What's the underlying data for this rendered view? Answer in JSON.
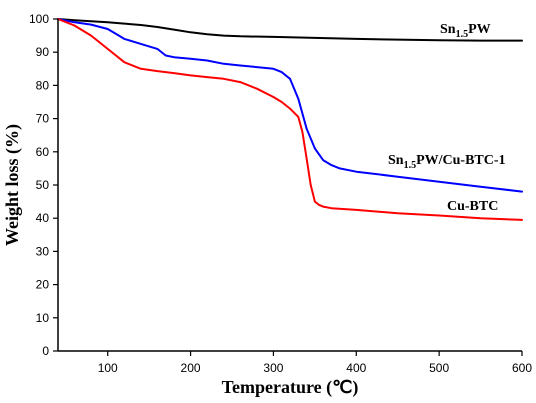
{
  "chart_data": {
    "type": "line",
    "xlabel": "Temperature (℃)",
    "ylabel": "Weight loss (%)",
    "xlim": [
      40,
      600
    ],
    "ylim": [
      0,
      100
    ],
    "xticks": [
      100,
      200,
      300,
      400,
      500,
      600
    ],
    "yticks": [
      0,
      10,
      20,
      30,
      40,
      50,
      60,
      70,
      80,
      90,
      100
    ],
    "grid": false,
    "legend": "none",
    "series": [
      {
        "name": "Sn1.5PW",
        "label_main": "Sn",
        "label_sub": "1.5",
        "label_rest": "PW",
        "color": "#000000",
        "x": [
          40,
          60,
          80,
          100,
          120,
          140,
          160,
          180,
          200,
          220,
          240,
          260,
          300,
          350,
          400,
          450,
          500,
          550,
          600
        ],
        "y": [
          100,
          99.6,
          99.3,
          99,
          98.6,
          98.2,
          97.6,
          96.8,
          96.0,
          95.4,
          95.0,
          94.8,
          94.6,
          94.3,
          94.0,
          93.8,
          93.6,
          93.5,
          93.5
        ]
      },
      {
        "name": "Sn1.5PW/Cu-BTC-1",
        "label_main": "Sn",
        "label_sub": "1.5",
        "label_rest": "PW/Cu-BTC-1",
        "color": "#0000ff",
        "x": [
          40,
          60,
          80,
          100,
          110,
          120,
          140,
          160,
          170,
          180,
          200,
          220,
          240,
          260,
          280,
          300,
          310,
          320,
          330,
          340,
          350,
          360,
          370,
          380,
          400,
          450,
          500,
          550,
          600
        ],
        "y": [
          100,
          99,
          98.3,
          97,
          95.5,
          94,
          92.5,
          91,
          89,
          88.5,
          88,
          87.5,
          86.5,
          86,
          85.5,
          85,
          84,
          82,
          76,
          67,
          61,
          57.5,
          56,
          55,
          54,
          52.5,
          51,
          49.5,
          48
        ]
      },
      {
        "name": "Cu-BTC",
        "label_main": "Cu-BTC",
        "label_sub": "",
        "label_rest": "",
        "color": "#ff0000",
        "x": [
          40,
          60,
          80,
          100,
          120,
          140,
          160,
          180,
          200,
          220,
          240,
          260,
          280,
          300,
          310,
          320,
          330,
          335,
          340,
          345,
          350,
          355,
          360,
          370,
          400,
          450,
          500,
          550,
          600
        ],
        "y": [
          100,
          98,
          95,
          91,
          87,
          85,
          84.3,
          83.7,
          83,
          82.5,
          82,
          81,
          79,
          76.5,
          75,
          73,
          70.5,
          66,
          58,
          50,
          45,
          44,
          43.5,
          43,
          42.5,
          41.5,
          40.8,
          40,
          39.5
        ]
      }
    ]
  }
}
